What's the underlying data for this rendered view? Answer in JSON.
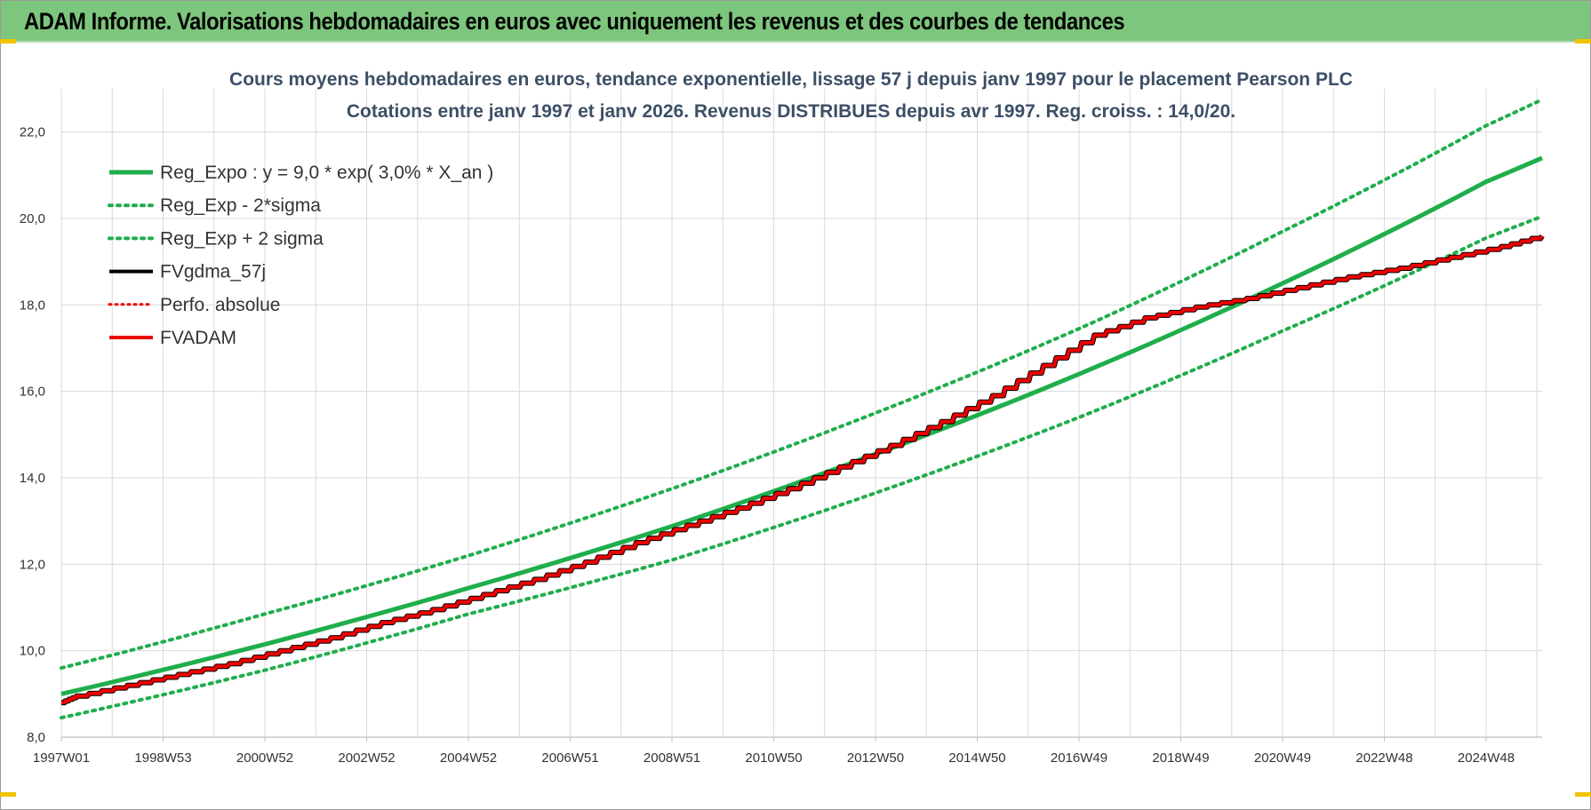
{
  "header": {
    "title": "ADAM Informe. Valorisations hebdomadaires en euros avec uniquement les revenus et des courbes de tendances"
  },
  "chart_data": {
    "type": "line",
    "title_lines": [
      "Cours moyens hebdomadaires en euros, tendance exponentielle, lissage 57 j depuis janv 1997  pour le placement Pearson PLC",
      "Cotations entre janv 1997 et janv 2026. Revenus DISTRIBUES depuis avr 1997.  Reg. croiss. : 14,0/20."
    ],
    "x_tick_labels": [
      "1997W01",
      "1998W53",
      "2000W52",
      "2002W52",
      "2004W52",
      "2006W51",
      "2008W51",
      "2010W50",
      "2012W50",
      "2014W50",
      "2016W49",
      "2018W49",
      "2020W49",
      "2022W48",
      "2024W48"
    ],
    "x_tick_years": [
      1997.0,
      1999.0,
      2001.0,
      2003.0,
      2005.0,
      2007.0,
      2009.0,
      2011.0,
      2013.0,
      2015.0,
      2017.0,
      2019.0,
      2021.0,
      2023.0,
      2025.0
    ],
    "xlim": [
      1997.0,
      2026.1
    ],
    "y_tick_labels": [
      "8,0",
      "10,0",
      "12,0",
      "14,0",
      "16,0",
      "18,0",
      "20,0",
      "22,0"
    ],
    "y_ticks": [
      8,
      10,
      12,
      14,
      16,
      18,
      20,
      22
    ],
    "ylim": [
      8,
      23
    ],
    "grid": true,
    "legend_position": "top-left",
    "colors": {
      "green": "#1fae4b",
      "black": "#000000",
      "red": "#ee0000",
      "grid": "#d9d9d9"
    },
    "series": [
      {
        "name": "Reg_Expo : y = 9,0 * exp( 3,0% *  X_an )",
        "style": "solid-green",
        "x": [
          1997,
          2001,
          2005,
          2009,
          2013,
          2017,
          2021,
          2025,
          2026.1
        ],
        "y": [
          9.0,
          10.15,
          11.45,
          12.88,
          14.55,
          16.4,
          18.5,
          20.85,
          21.4
        ]
      },
      {
        "name": "Reg_Exp - 2*sigma",
        "style": "dotted-green",
        "x": [
          1997,
          2001,
          2005,
          2009,
          2013,
          2017,
          2021,
          2025,
          2026.1
        ],
        "y": [
          8.45,
          9.55,
          10.85,
          12.1,
          13.65,
          15.4,
          17.4,
          19.55,
          20.05
        ]
      },
      {
        "name": "Reg_Exp + 2 sigma",
        "style": "dotted-green",
        "x": [
          1997,
          2001,
          2005,
          2009,
          2013,
          2017,
          2021,
          2025,
          2026.1
        ],
        "y": [
          9.6,
          10.85,
          12.2,
          13.75,
          15.5,
          17.45,
          19.7,
          22.15,
          22.75
        ]
      },
      {
        "name": "FVgdma_57j",
        "style": "solid-black-thin",
        "x": [
          1997.0,
          1997.3,
          1998.3,
          1999.3,
          2000.3,
          2001.3,
          2002.3,
          2003.3,
          2004.3,
          2005.3,
          2006.3,
          2007.3,
          2008.3,
          2009.3,
          2010.3,
          2011.3,
          2012.3,
          2013.3,
          2014.3,
          2015.3,
          2016.3,
          2017.3,
          2018.3,
          2019.3,
          2020.3,
          2021.3,
          2022.3,
          2023.3,
          2024.3,
          2025.3,
          2026.1
        ],
        "y": [
          8.8,
          8.95,
          9.2,
          9.45,
          9.7,
          10.0,
          10.3,
          10.65,
          10.95,
          11.3,
          11.65,
          12.05,
          12.5,
          12.9,
          13.3,
          13.75,
          14.25,
          14.75,
          15.3,
          15.9,
          16.6,
          17.3,
          17.7,
          17.95,
          18.15,
          18.4,
          18.65,
          18.85,
          19.1,
          19.35,
          19.6
        ]
      },
      {
        "name": "Perfo. absolue",
        "style": "dotted-red",
        "x": [],
        "y": []
      },
      {
        "name": "FVADAM",
        "style": "step-red",
        "x": [
          1997.0,
          1997.3,
          1998.3,
          1999.3,
          2000.3,
          2001.3,
          2002.3,
          2003.3,
          2004.3,
          2005.3,
          2006.3,
          2007.3,
          2008.3,
          2009.3,
          2010.3,
          2011.3,
          2012.3,
          2013.3,
          2014.3,
          2015.3,
          2016.3,
          2017.3,
          2018.3,
          2019.3,
          2020.3,
          2021.3,
          2022.3,
          2023.3,
          2024.3,
          2025.3,
          2026.1
        ],
        "y": [
          8.8,
          8.95,
          9.2,
          9.45,
          9.7,
          10.0,
          10.3,
          10.65,
          10.95,
          11.3,
          11.65,
          12.05,
          12.5,
          12.9,
          13.3,
          13.75,
          14.25,
          14.75,
          15.3,
          15.9,
          16.6,
          17.3,
          17.7,
          17.95,
          18.15,
          18.4,
          18.65,
          18.85,
          19.1,
          19.35,
          19.6
        ]
      }
    ]
  }
}
